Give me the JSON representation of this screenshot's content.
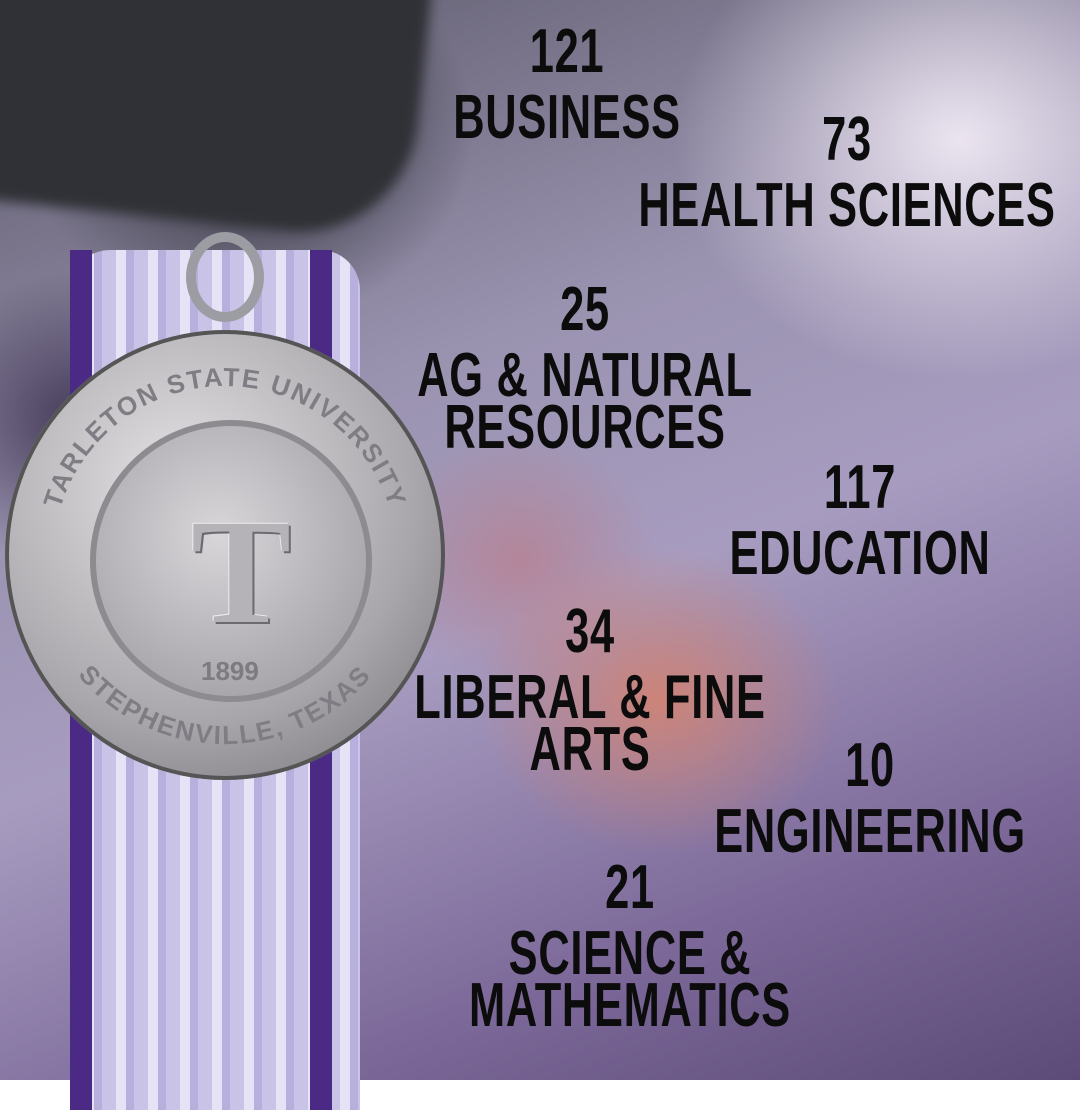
{
  "medal": {
    "inscription_top": "TARLETON STATE UNIVERSITY",
    "inscription_bottom": "STEPHENVILLE, TEXAS",
    "year": "1899",
    "emblem": "T"
  },
  "stats": [
    {
      "count": "121",
      "label_lines": [
        "BUSINESS"
      ]
    },
    {
      "count": "73",
      "label_lines": [
        "HEALTH SCIENCES"
      ]
    },
    {
      "count": "25",
      "label_lines": [
        "AG & NATURAL",
        "RESOURCES"
      ]
    },
    {
      "count": "117",
      "label_lines": [
        "EDUCATION"
      ]
    },
    {
      "count": "34",
      "label_lines": [
        "LIBERAL & FINE",
        "ARTS"
      ]
    },
    {
      "count": "10",
      "label_lines": [
        "ENGINEERING"
      ]
    },
    {
      "count": "21",
      "label_lines": [
        "SCIENCE &",
        "MATHEMATICS"
      ]
    }
  ],
  "colors": {
    "text": "#0c0c0c",
    "tassel": "#d8d2f0",
    "tassel_stripe": "#4b2a86"
  }
}
